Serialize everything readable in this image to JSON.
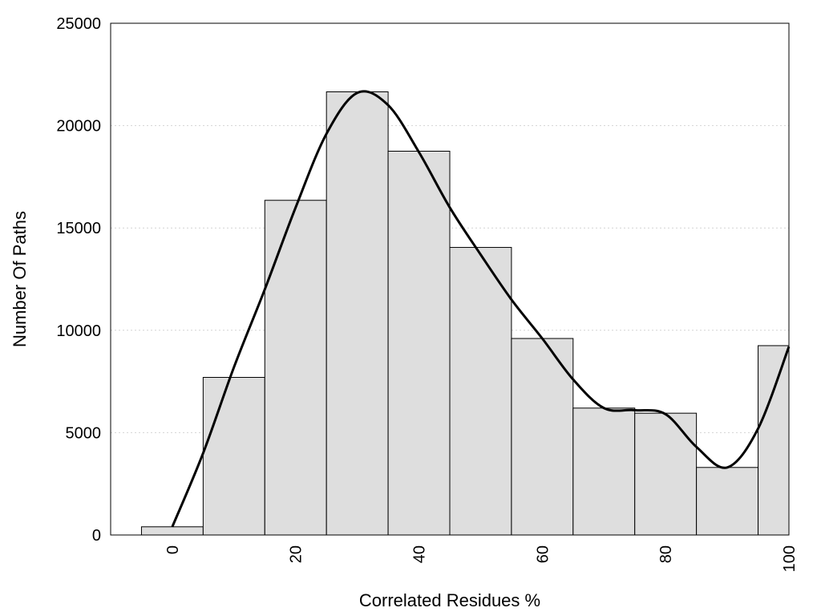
{
  "chart_data": {
    "type": "bar",
    "title": "",
    "xlabel": "Correlated Residues %",
    "ylabel": "Number Of Paths",
    "xlim": [
      -10,
      100
    ],
    "ylim": [
      0,
      25000
    ],
    "x_ticks": [
      0,
      20,
      40,
      60,
      80,
      100
    ],
    "y_ticks": [
      0,
      5000,
      10000,
      15000,
      20000,
      25000
    ],
    "grid": "horizontal-dotted",
    "bar_width": 10,
    "categories": [
      0,
      10,
      20,
      30,
      40,
      50,
      60,
      70,
      80,
      90,
      100
    ],
    "values": [
      400,
      7700,
      16350,
      21650,
      18750,
      14050,
      9600,
      6200,
      5950,
      3300,
      9250
    ],
    "curve": {
      "x": [
        0,
        5,
        10,
        15,
        20,
        25,
        30,
        35,
        40,
        45,
        50,
        55,
        60,
        65,
        70,
        75,
        80,
        85,
        90,
        95,
        100
      ],
      "y": [
        400,
        4000,
        8200,
        12000,
        16000,
        19600,
        21600,
        21000,
        18700,
        16000,
        13700,
        11500,
        9600,
        7600,
        6200,
        6100,
        5900,
        4300,
        3300,
        5200,
        9200
      ]
    },
    "colors": {
      "bar_fill": "#dedede",
      "bar_stroke": "#000000",
      "curve": "#000000",
      "grid": "#d4d4d4"
    }
  }
}
